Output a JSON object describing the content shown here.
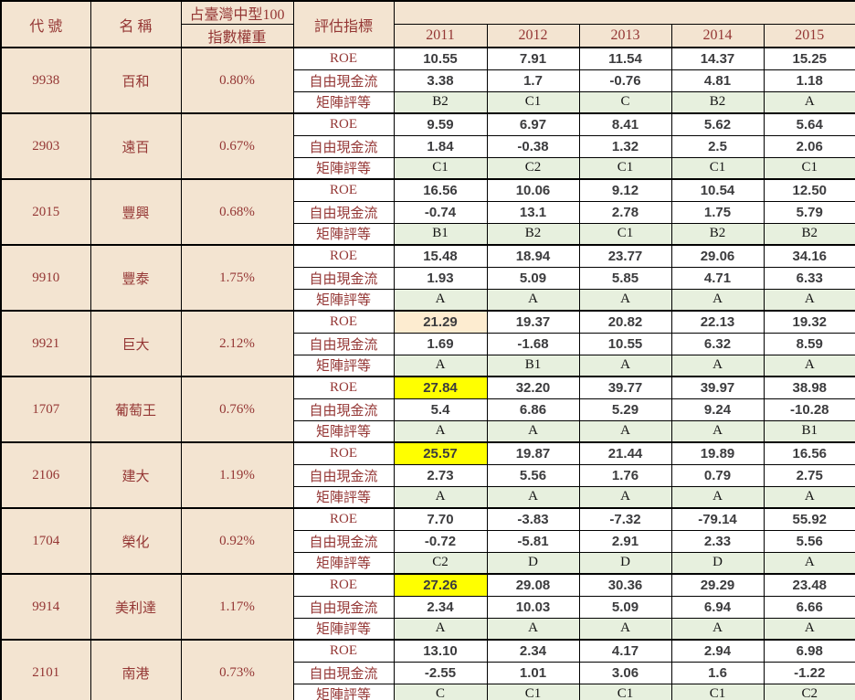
{
  "header": {
    "code": "代 號",
    "name": "名 稱",
    "weight_line1": "占臺灣中型100",
    "weight_line2": "指數權重",
    "indicator": "評估指標",
    "years": [
      "2011",
      "2012",
      "2013",
      "2014",
      "2015"
    ]
  },
  "indicators": [
    "ROE",
    "自由現金流",
    "矩陣評等"
  ],
  "colors": {
    "header_bg": "#f3e4d1",
    "header_text": "#943634",
    "rating_bg": "#e7f0de",
    "highlight_yellow": "#ffff00",
    "highlight_peach": "#fdecd0",
    "number_text": "#3c3c3e",
    "border": "#000000"
  },
  "stocks": [
    {
      "code": "9938",
      "name": "百和",
      "weight": "0.80%",
      "roe": [
        "10.55",
        "7.91",
        "11.54",
        "14.37",
        "15.25"
      ],
      "fcf": [
        "3.38",
        "1.7",
        "-0.76",
        "4.81",
        "1.18"
      ],
      "rating": [
        "B2",
        "C1",
        "C",
        "B2",
        "A"
      ],
      "roe_highlights": [
        null,
        null,
        null,
        null,
        null
      ]
    },
    {
      "code": "2903",
      "name": "遠百",
      "weight": "0.67%",
      "roe": [
        "9.59",
        "6.97",
        "8.41",
        "5.62",
        "5.64"
      ],
      "fcf": [
        "1.84",
        "-0.38",
        "1.32",
        "2.5",
        "2.06"
      ],
      "rating": [
        "C1",
        "C2",
        "C1",
        "C1",
        "C1"
      ],
      "roe_highlights": [
        null,
        null,
        null,
        null,
        null
      ]
    },
    {
      "code": "2015",
      "name": "豐興",
      "weight": "0.68%",
      "roe": [
        "16.56",
        "10.06",
        "9.12",
        "10.54",
        "12.50"
      ],
      "fcf": [
        "-0.74",
        "13.1",
        "2.78",
        "1.75",
        "5.79"
      ],
      "rating": [
        "B1",
        "B2",
        "C1",
        "B2",
        "B2"
      ],
      "roe_highlights": [
        null,
        null,
        null,
        null,
        null
      ]
    },
    {
      "code": "9910",
      "name": "豐泰",
      "weight": "1.75%",
      "roe": [
        "15.48",
        "18.94",
        "23.77",
        "29.06",
        "34.16"
      ],
      "fcf": [
        "1.93",
        "5.09",
        "5.85",
        "4.71",
        "6.33"
      ],
      "rating": [
        "A",
        "A",
        "A",
        "A",
        "A"
      ],
      "roe_highlights": [
        null,
        null,
        null,
        null,
        null
      ]
    },
    {
      "code": "9921",
      "name": "巨大",
      "weight": "2.12%",
      "roe": [
        "21.29",
        "19.37",
        "20.82",
        "22.13",
        "19.32"
      ],
      "fcf": [
        "1.69",
        "-1.68",
        "10.55",
        "6.32",
        "8.59"
      ],
      "rating": [
        "A",
        "B1",
        "A",
        "A",
        "A"
      ],
      "roe_highlights": [
        "peach",
        null,
        null,
        null,
        null
      ]
    },
    {
      "code": "1707",
      "name": "葡萄王",
      "weight": "0.76%",
      "roe": [
        "27.84",
        "32.20",
        "39.77",
        "39.97",
        "38.98"
      ],
      "fcf": [
        "5.4",
        "6.86",
        "5.29",
        "9.24",
        "-10.28"
      ],
      "rating": [
        "A",
        "A",
        "A",
        "A",
        "B1"
      ],
      "roe_highlights": [
        "yellow",
        null,
        null,
        null,
        null
      ]
    },
    {
      "code": "2106",
      "name": "建大",
      "weight": "1.19%",
      "roe": [
        "25.57",
        "19.87",
        "21.44",
        "19.89",
        "16.56"
      ],
      "fcf": [
        "2.73",
        "5.56",
        "1.76",
        "0.79",
        "2.75"
      ],
      "rating": [
        "A",
        "A",
        "A",
        "A",
        "A"
      ],
      "roe_highlights": [
        "yellow",
        null,
        null,
        null,
        null
      ]
    },
    {
      "code": "1704",
      "name": "榮化",
      "weight": "0.92%",
      "roe": [
        "7.70",
        "-3.83",
        "-7.32",
        "-79.14",
        "55.92"
      ],
      "fcf": [
        "-0.72",
        "-5.81",
        "2.91",
        "2.33",
        "5.56"
      ],
      "rating": [
        "C2",
        "D",
        "D",
        "D",
        "A"
      ],
      "roe_highlights": [
        null,
        null,
        null,
        null,
        null
      ]
    },
    {
      "code": "9914",
      "name": "美利達",
      "weight": "1.17%",
      "roe": [
        "27.26",
        "29.08",
        "30.36",
        "29.29",
        "23.48"
      ],
      "fcf": [
        "2.34",
        "10.03",
        "5.09",
        "6.94",
        "6.66"
      ],
      "rating": [
        "A",
        "A",
        "A",
        "A",
        "A"
      ],
      "roe_highlights": [
        "yellow",
        null,
        null,
        null,
        null
      ]
    },
    {
      "code": "2101",
      "name": "南港",
      "weight": "0.73%",
      "roe": [
        "13.10",
        "2.34",
        "4.17",
        "2.94",
        "6.98"
      ],
      "fcf": [
        "-2.55",
        "1.01",
        "3.06",
        "1.6",
        "-1.22"
      ],
      "rating": [
        "C",
        "C1",
        "C1",
        "C1",
        "C2"
      ],
      "roe_highlights": [
        null,
        null,
        null,
        null,
        null
      ]
    }
  ]
}
